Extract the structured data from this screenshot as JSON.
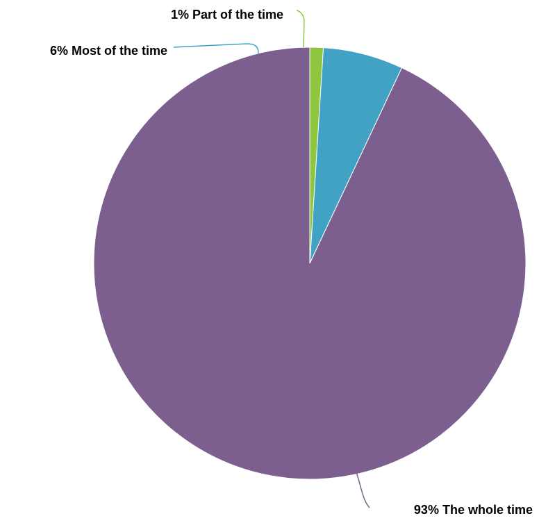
{
  "chart_data": {
    "type": "pie",
    "title": "",
    "start": "top",
    "direction": "counterclockwise",
    "slices": [
      {
        "label": "The whole time",
        "percent_label": "93%",
        "value": 93,
        "color": "#7c5f8e"
      },
      {
        "label": "Most of the time",
        "percent_label": "6%",
        "value": 6,
        "color": "#41a2c4"
      },
      {
        "label": "Part of the time",
        "percent_label": "1%",
        "value": 1,
        "color": "#8ec63f"
      }
    ],
    "legend": "none"
  }
}
